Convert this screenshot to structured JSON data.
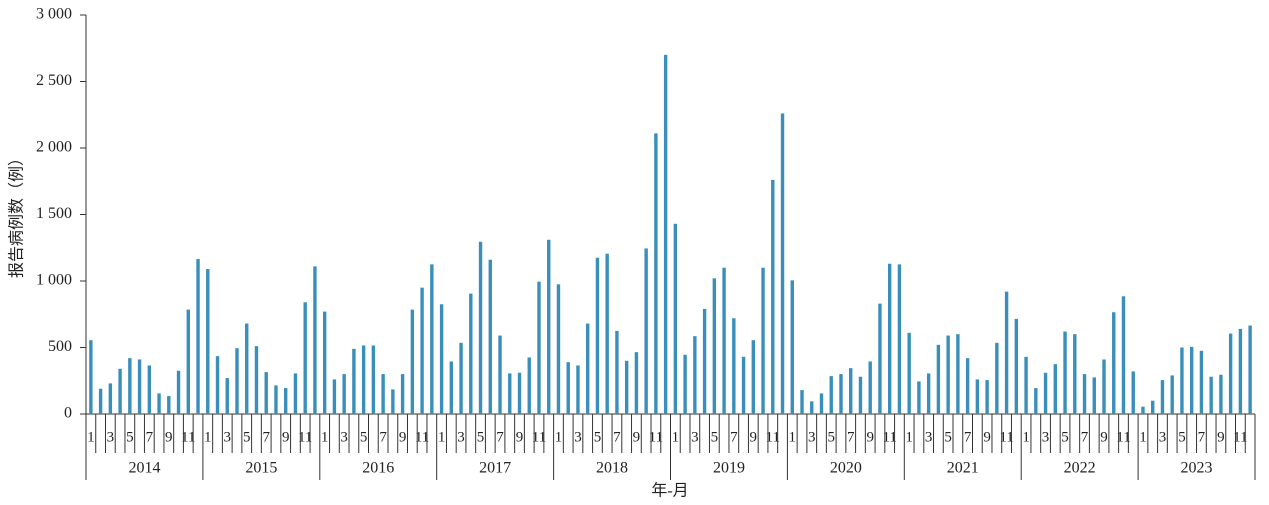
{
  "chart_data": {
    "type": "bar",
    "ylabel": "报告病例数（例）",
    "xlabel": "年-月",
    "color": "#3a8fba",
    "ylim": [
      0,
      3000
    ],
    "yticks": [
      0,
      500,
      {
        "value": 1000,
        "label": "1 000"
      },
      {
        "value": 1500,
        "label": "1 500"
      },
      {
        "value": 2000,
        "label": "2 000"
      },
      {
        "value": 2500,
        "label": "2 500"
      },
      {
        "value": 3000,
        "label": "3 000"
      }
    ],
    "years": [
      "2014",
      "2015",
      "2016",
      "2017",
      "2018",
      "2019",
      "2020",
      "2021",
      "2022",
      "2023"
    ],
    "categories": [
      "1",
      null,
      "3",
      null,
      "5",
      null,
      "7",
      null,
      "9",
      null,
      "11",
      null,
      "1",
      null,
      "3",
      null,
      "5",
      null,
      "7",
      null,
      "9",
      null,
      "11",
      null,
      "1",
      null,
      "3",
      null,
      "5",
      null,
      "7",
      null,
      "9",
      null,
      "11",
      null,
      "1",
      null,
      "3",
      null,
      "5",
      null,
      "7",
      null,
      "9",
      null,
      "11",
      null,
      "1",
      null,
      "3",
      null,
      "5",
      null,
      "7",
      null,
      "9",
      null,
      "11",
      null,
      "1",
      null,
      "3",
      null,
      "5",
      null,
      "7",
      null,
      "9",
      null,
      "11",
      null,
      "1",
      null,
      "3",
      null,
      "5",
      null,
      "7",
      null,
      "9",
      null,
      "11",
      null,
      "1",
      null,
      "3",
      null,
      "5",
      null,
      "7",
      null,
      "9",
      null,
      "11",
      null,
      "1",
      null,
      "3",
      null,
      "5",
      null,
      "7",
      null,
      "9",
      null,
      "11",
      null,
      "1",
      null,
      "3",
      null,
      "5",
      null,
      "7",
      null,
      "9",
      null,
      "11",
      null
    ],
    "values": [
      555,
      190,
      230,
      340,
      420,
      410,
      365,
      155,
      135,
      325,
      785,
      1165,
      1090,
      435,
      270,
      495,
      680,
      510,
      315,
      215,
      195,
      305,
      840,
      1110,
      770,
      260,
      300,
      490,
      515,
      515,
      300,
      185,
      300,
      785,
      950,
      1125,
      825,
      395,
      535,
      905,
      1295,
      1160,
      590,
      305,
      310,
      425,
      995,
      1310,
      975,
      390,
      365,
      680,
      1175,
      1205,
      625,
      400,
      465,
      1245,
      2110,
      2700,
      1430,
      445,
      585,
      790,
      1020,
      1100,
      720,
      430,
      555,
      1100,
      1760,
      2260,
      1005,
      180,
      95,
      155,
      285,
      300,
      345,
      280,
      395,
      830,
      1130,
      1125,
      610,
      245,
      305,
      520,
      590,
      600,
      420,
      260,
      255,
      535,
      920,
      715,
      430,
      195,
      310,
      375,
      620,
      600,
      300,
      275,
      410,
      765,
      885,
      320,
      55,
      100,
      255,
      290,
      500,
      505,
      475,
      280,
      295,
      605,
      640,
      665
    ]
  }
}
